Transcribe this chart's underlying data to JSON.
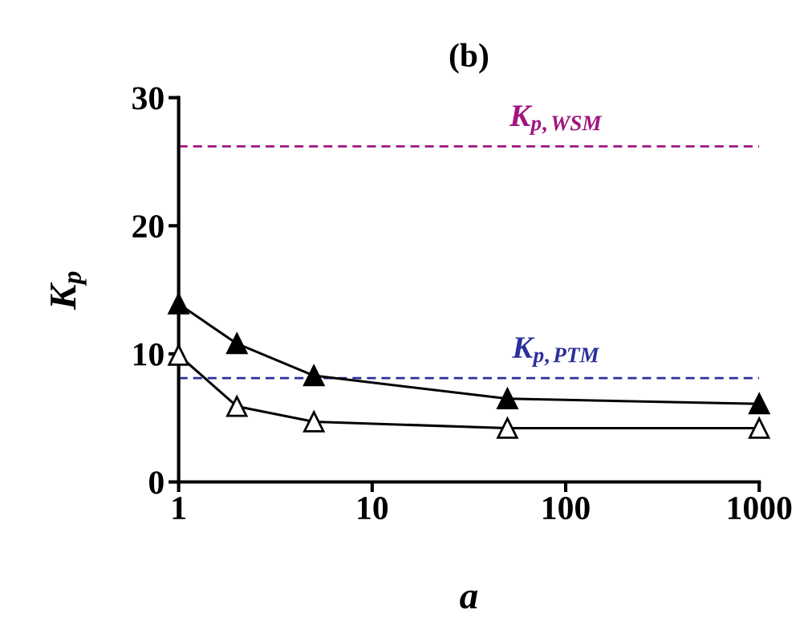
{
  "chart_data": {
    "type": "line",
    "title": "(b)",
    "xlabel": "a",
    "ylabel": "K$_{p}$",
    "log": "x",
    "xlim": [
      1,
      1000
    ],
    "xticks": [
      1,
      10,
      100,
      1000
    ],
    "ylim": [
      0,
      30
    ],
    "yticks": [
      0,
      10,
      20,
      30
    ],
    "grid": false,
    "legend": false,
    "series": [
      {
        "color": "#000000",
        "marker": "triangle",
        "x": [
          1,
          2,
          5,
          50,
          1000
        ],
        "values": [
          13.9,
          10.8,
          8.3,
          6.5,
          6.1
        ]
      },
      {
        "color": "#ffffff",
        "marker": "triangle",
        "x": [
          1,
          2,
          5,
          50,
          1000
        ],
        "values": [
          9.9,
          5.9,
          4.7,
          4.2,
          4.2
        ]
      }
    ],
    "ref_lines": [
      {
        "axis": "y",
        "value": 26.2,
        "label": "K$_{p,WSM}$",
        "color": "#a0157f",
        "line_style": "dashed"
      },
      {
        "axis": "y",
        "value": 8.1,
        "label": "K$_{p,PTM}$",
        "color": "#2b2f9c",
        "line_style": "dashed"
      }
    ]
  }
}
